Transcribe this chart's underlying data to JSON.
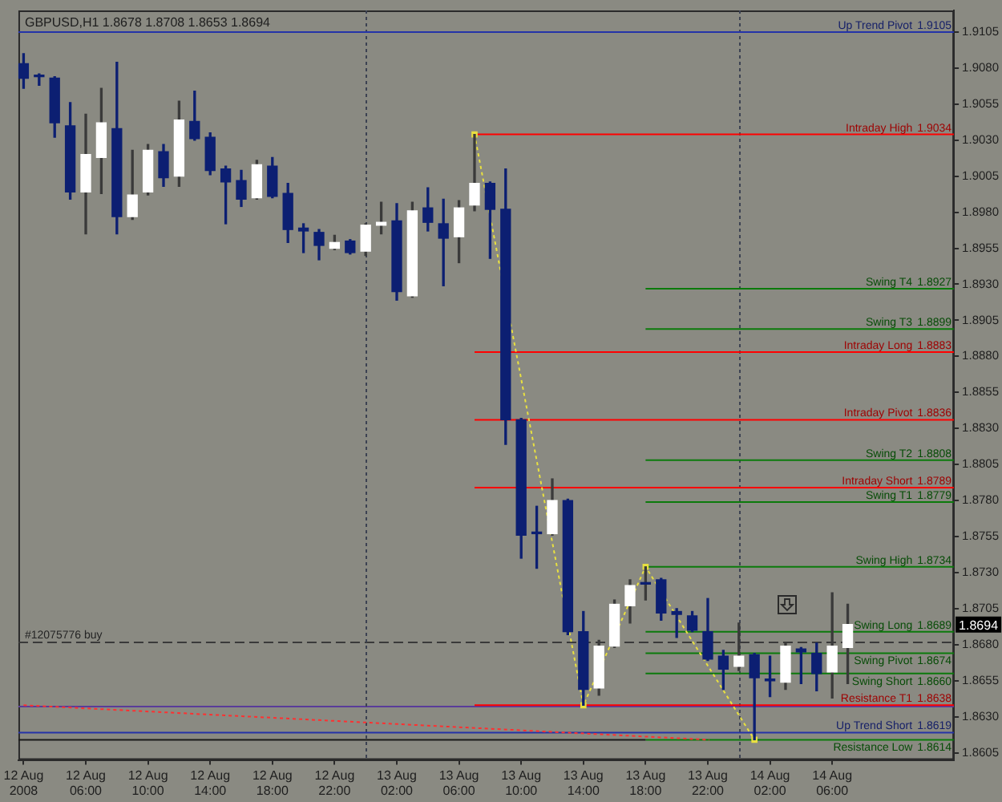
{
  "chart_data": {
    "type": "candlestick",
    "title": "GBPUSD,H1 1.8678 1.8708 1.8653 1.8694",
    "x": [
      "2008-08-12T02:00",
      "2008-08-12T03:00",
      "2008-08-12T04:00",
      "2008-08-12T05:00",
      "2008-08-12T06:00",
      "2008-08-12T07:00",
      "2008-08-12T08:00",
      "2008-08-12T09:00",
      "2008-08-12T10:00",
      "2008-08-12T11:00",
      "2008-08-12T12:00",
      "2008-08-12T13:00",
      "2008-08-12T14:00",
      "2008-08-12T15:00",
      "2008-08-12T16:00",
      "2008-08-12T17:00",
      "2008-08-12T18:00",
      "2008-08-12T19:00",
      "2008-08-12T20:00",
      "2008-08-12T21:00",
      "2008-08-12T22:00",
      "2008-08-12T23:00",
      "2008-08-13T00:00",
      "2008-08-13T01:00",
      "2008-08-13T02:00",
      "2008-08-13T03:00",
      "2008-08-13T04:00",
      "2008-08-13T05:00",
      "2008-08-13T06:00",
      "2008-08-13T07:00",
      "2008-08-13T08:00",
      "2008-08-13T09:00",
      "2008-08-13T10:00",
      "2008-08-13T11:00",
      "2008-08-13T12:00",
      "2008-08-13T13:00",
      "2008-08-13T14:00",
      "2008-08-13T15:00",
      "2008-08-13T16:00",
      "2008-08-13T17:00",
      "2008-08-13T18:00",
      "2008-08-13T19:00",
      "2008-08-13T20:00",
      "2008-08-13T21:00",
      "2008-08-13T22:00",
      "2008-08-13T23:00",
      "2008-08-14T00:00",
      "2008-08-14T01:00",
      "2008-08-14T02:00",
      "2008-08-14T03:00",
      "2008-08-14T04:00",
      "2008-08-14T05:00",
      "2008-08-14T06:00",
      "2008-08-14T07:00"
    ],
    "ohlc": [
      [
        1.9083,
        1.909,
        1.9066,
        1.9073
      ],
      [
        1.9075,
        1.9076,
        1.9068,
        1.9074
      ],
      [
        1.9073,
        1.9074,
        1.9032,
        1.9042
      ],
      [
        1.904,
        1.9056,
        1.8989,
        1.8994
      ],
      [
        1.8994,
        1.9048,
        1.8965,
        1.902
      ],
      [
        1.9018,
        1.9066,
        1.8993,
        1.9042
      ],
      [
        1.9038,
        1.9084,
        1.8965,
        1.8977
      ],
      [
        1.8977,
        1.9023,
        1.8975,
        1.8992
      ],
      [
        1.8994,
        1.9027,
        1.8992,
        1.9023
      ],
      [
        1.9022,
        1.9027,
        1.8998,
        1.9004
      ],
      [
        1.9005,
        1.9057,
        1.8998,
        1.9044
      ],
      [
        1.9043,
        1.9064,
        1.903,
        1.9031
      ],
      [
        1.9032,
        1.9035,
        1.9006,
        1.9009
      ],
      [
        1.901,
        1.9012,
        1.8972,
        1.9001
      ],
      [
        1.9002,
        1.9009,
        1.8984,
        1.8989
      ],
      [
        1.899,
        1.9016,
        1.8989,
        1.9013
      ],
      [
        1.9012,
        1.9018,
        1.899,
        1.8991
      ],
      [
        1.8993,
        1.9,
        1.8959,
        1.8968
      ],
      [
        1.8969,
        1.8972,
        1.8952,
        1.8967
      ],
      [
        1.8966,
        1.8968,
        1.8947,
        1.8957
      ],
      [
        1.8955,
        1.8964,
        1.8954,
        1.8959
      ],
      [
        1.896,
        1.8961,
        1.8951,
        1.8952
      ],
      [
        1.8953,
        1.8972,
        1.895,
        1.8971
      ],
      [
        1.8971,
        1.8987,
        1.8965,
        1.8973
      ],
      [
        1.8974,
        1.8986,
        1.8919,
        1.8925
      ],
      [
        1.8922,
        1.8987,
        1.8921,
        1.8981
      ],
      [
        1.8983,
        1.8997,
        1.8967,
        1.8973
      ],
      [
        1.8972,
        1.8989,
        1.8929,
        1.8962
      ],
      [
        1.8963,
        1.8988,
        1.8945,
        1.8983
      ],
      [
        1.8985,
        1.9034,
        1.8981,
        1.9
      ],
      [
        1.9,
        1.9001,
        1.8948,
        1.8982
      ],
      [
        1.8982,
        1.901,
        1.8819,
        1.8836
      ],
      [
        1.8836,
        1.8837,
        1.874,
        1.8756
      ],
      [
        1.8758,
        1.8776,
        1.8733,
        1.8757
      ],
      [
        1.8757,
        1.8795,
        1.8756,
        1.878
      ],
      [
        1.878,
        1.8781,
        1.8687,
        1.8689
      ],
      [
        1.8689,
        1.8703,
        1.8638,
        1.8649
      ],
      [
        1.865,
        1.8683,
        1.8645,
        1.8679
      ],
      [
        1.8679,
        1.8711,
        1.8678,
        1.8708
      ],
      [
        1.8707,
        1.8725,
        1.8695,
        1.8721
      ],
      [
        1.8722,
        1.8734,
        1.8711,
        1.8722
      ],
      [
        1.8725,
        1.8726,
        1.8697,
        1.8702
      ],
      [
        1.8703,
        1.8705,
        1.8685,
        1.8701
      ],
      [
        1.87,
        1.8703,
        1.8689,
        1.869
      ],
      [
        1.8689,
        1.8712,
        1.8669,
        1.867
      ],
      [
        1.8672,
        1.8676,
        1.8649,
        1.8663
      ],
      [
        1.8665,
        1.8695,
        1.8662,
        1.8672
      ],
      [
        1.8673,
        1.8674,
        1.8614,
        1.8657
      ],
      [
        1.8656,
        1.8672,
        1.8644,
        1.8655
      ],
      [
        1.8654,
        1.8681,
        1.8649,
        1.8679
      ],
      [
        1.8677,
        1.8678,
        1.8653,
        1.8675
      ],
      [
        1.8674,
        1.8681,
        1.8648,
        1.866
      ],
      [
        1.8661,
        1.8716,
        1.8643,
        1.8679
      ],
      [
        1.8678,
        1.8708,
        1.8653,
        1.8694
      ]
    ],
    "colors": [
      "#0c1f72",
      "#0c1f72",
      "#0c1f72",
      "#0c1f72",
      "#ffffff",
      "#ffffff",
      "#0c1f72",
      "#ffffff",
      "#ffffff",
      "#0c1f72",
      "#ffffff",
      "#0c1f72",
      "#0c1f72",
      "#0c1f72",
      "#0c1f72",
      "#ffffff",
      "#0c1f72",
      "#0c1f72",
      "#0c1f72",
      "#0c1f72",
      "#ffffff",
      "#0c1f72",
      "#ffffff",
      "#ffffff",
      "#0c1f72",
      "#ffffff",
      "#0c1f72",
      "#0c1f72",
      "#ffffff",
      "#ffffff",
      "#0c1f72",
      "#0c1f72",
      "#0c1f72",
      "#0c1f72",
      "#ffffff",
      "#0c1f72",
      "#0c1f72",
      "#ffffff",
      "#ffffff",
      "#ffffff",
      "#0c1f72",
      "#0c1f72",
      "#0c1f72",
      "#0c1f72",
      "#0c1f72",
      "#0c1f72",
      "#ffffff",
      "#0c1f72",
      "#0c1f72",
      "#ffffff",
      "#0c1f72",
      "#0c1f72",
      "#ffffff",
      "#ffffff"
    ],
    "series": [
      {
        "type": "line",
        "color": "#e8e040",
        "line_style": "dotted",
        "marker": "square",
        "x": [
          "2008-08-13T07:00",
          "2008-08-13T14:00",
          "2008-08-13T18:00",
          "2008-08-14T01:00"
        ],
        "values": [
          1.9034,
          1.8638,
          1.8734,
          1.8614
        ]
      },
      {
        "type": "line",
        "color": "#ff3030",
        "line_style": "dotted",
        "x": [
          "2008-08-12T02:00",
          "2008-08-13T22:06"
        ],
        "values": [
          1.8638,
          1.8614
        ]
      },
      {
        "type": "line",
        "name": "Up Trend Pivot",
        "color": "#2433a8",
        "x": [
          "2008-08-12T01:40",
          "2008-08-14T13:50"
        ],
        "values": [
          1.9105,
          1.9105
        ],
        "value_labels": [
          null,
          "1.9105"
        ]
      },
      {
        "type": "line",
        "name": "Intraday High",
        "color": "#ff0000",
        "x": [
          "2008-08-13T07:00",
          "2008-08-14T13:50"
        ],
        "values": [
          1.9034,
          1.9034
        ],
        "value_labels": [
          null,
          "1.9034"
        ]
      },
      {
        "type": "line",
        "name": "Swing T4",
        "color": "#0b7a0b",
        "x": [
          "2008-08-13T18:00",
          "2008-08-14T13:50"
        ],
        "values": [
          1.8927,
          1.8927
        ],
        "value_labels": [
          null,
          "1.8927"
        ]
      },
      {
        "type": "line",
        "name": "Swing T3",
        "color": "#0b7a0b",
        "x": [
          "2008-08-13T18:00",
          "2008-08-14T13:50"
        ],
        "values": [
          1.8899,
          1.8899
        ],
        "value_labels": [
          null,
          "1.8899"
        ]
      },
      {
        "type": "line",
        "name": "Intraday Long",
        "color": "#ff0000",
        "x": [
          "2008-08-13T07:00",
          "2008-08-14T13:50"
        ],
        "values": [
          1.8883,
          1.8883
        ],
        "value_labels": [
          null,
          "1.8883"
        ]
      },
      {
        "type": "line",
        "name": "Intraday Pivot",
        "color": "#ff0000",
        "x": [
          "2008-08-13T07:00",
          "2008-08-14T13:50"
        ],
        "values": [
          1.8836,
          1.8836
        ],
        "value_labels": [
          null,
          "1.8836"
        ]
      },
      {
        "type": "line",
        "name": "Swing T2",
        "color": "#0b7a0b",
        "x": [
          "2008-08-13T18:00",
          "2008-08-14T13:50"
        ],
        "values": [
          1.8808,
          1.8808
        ],
        "value_labels": [
          null,
          "1.8808"
        ]
      },
      {
        "type": "line",
        "name": "Intraday Short",
        "color": "#ff0000",
        "x": [
          "2008-08-13T07:00",
          "2008-08-14T13:50"
        ],
        "values": [
          1.8789,
          1.8789
        ],
        "value_labels": [
          null,
          "1.8789"
        ]
      },
      {
        "type": "line",
        "name": "Swing T1",
        "color": "#0b7a0b",
        "x": [
          "2008-08-13T18:00",
          "2008-08-14T13:50"
        ],
        "values": [
          1.8779,
          1.8779
        ],
        "value_labels": [
          null,
          "1.8779"
        ]
      },
      {
        "type": "line",
        "name": "Swing High",
        "color": "#0b7a0b",
        "x": [
          "2008-08-13T18:00",
          "2008-08-14T13:50"
        ],
        "values": [
          1.8734,
          1.8734
        ],
        "value_labels": [
          null,
          "1.8734"
        ]
      },
      {
        "type": "line",
        "name": "Swing Long",
        "color": "#0b7a0b",
        "x": [
          "2008-08-13T18:00",
          "2008-08-14T13:50"
        ],
        "values": [
          1.8689,
          1.8689
        ],
        "value_labels": [
          null,
          "1.8689"
        ]
      },
      {
        "type": "line",
        "name": "Swing Pivot",
        "color": "#0b7a0b",
        "x": [
          "2008-08-13T18:00",
          "2008-08-14T13:50"
        ],
        "values": [
          1.8674,
          1.8674
        ],
        "value_labels": [
          null,
          "1.8674"
        ]
      },
      {
        "type": "line",
        "name": "Swing Short",
        "color": "#0b7a0b",
        "x": [
          "2008-08-13T18:00",
          "2008-08-14T13:50"
        ],
        "values": [
          1.866,
          1.866
        ],
        "value_labels": [
          null,
          "1.8660"
        ]
      },
      {
        "type": "line",
        "name": "Resistance T1",
        "color": "#ff0000",
        "x": [
          "2008-08-13T07:00",
          "2008-08-14T13:50"
        ],
        "values": [
          1.8638,
          1.8638
        ],
        "value_labels": [
          null,
          "1.8638"
        ]
      },
      {
        "type": "line",
        "name": "Up Trend Short",
        "color": "#2433a8",
        "x": [
          "2008-08-12T01:40",
          "2008-08-14T13:50"
        ],
        "values": [
          1.8619,
          1.8619
        ],
        "value_labels": [
          null,
          "1.8619"
        ]
      },
      {
        "type": "line",
        "color": "#1a1a1a",
        "x": [
          "2008-08-12T01:40",
          "2008-08-13T18:00"
        ],
        "values": [
          1.8614,
          1.8614
        ]
      },
      {
        "type": "line",
        "name": "Resistance Low",
        "color": "#0b7a0b",
        "x": [
          "2008-08-13T18:00",
          "2008-08-14T13:50"
        ],
        "values": [
          1.8614,
          1.8614
        ],
        "value_labels": [
          null,
          "1.8614"
        ]
      }
    ],
    "ref_lines": [
      {
        "axis": "y",
        "value": 1.8682,
        "label": "#12075776 buy",
        "color": "#3a3a3a",
        "line_style": "dashed"
      },
      {
        "axis": "y",
        "value": 1.8638,
        "color": "#5a3c9a"
      },
      {
        "axis": "x",
        "value": "2008-08-13T00:00",
        "color": "#3c4252",
        "line_style": "dotted"
      },
      {
        "axis": "x",
        "value": "2008-08-14T00:00",
        "color": "#3c4252",
        "line_style": "dotted"
      }
    ],
    "annotations": [
      {
        "text": "1.8694",
        "y": 1.8694
      }
    ],
    "xlim": [
      "2008-08-12T01:40",
      "2008-08-14T13:50"
    ],
    "xticks": [
      {
        "value": "2008-08-12T02:00",
        "label": "12 Aug 2008"
      },
      {
        "value": "2008-08-12T06:00",
        "label": "12 Aug 06:00"
      },
      {
        "value": "2008-08-12T10:00",
        "label": "12 Aug 10:00"
      },
      {
        "value": "2008-08-12T14:00",
        "label": "12 Aug 14:00"
      },
      {
        "value": "2008-08-12T18:00",
        "label": "12 Aug 18:00"
      },
      {
        "value": "2008-08-12T22:00",
        "label": "12 Aug 22:00"
      },
      {
        "value": "2008-08-13T02:00",
        "label": "13 Aug 02:00"
      },
      {
        "value": "2008-08-13T06:00",
        "label": "13 Aug 06:00"
      },
      {
        "value": "2008-08-13T10:00",
        "label": "13 Aug 10:00"
      },
      {
        "value": "2008-08-13T14:00",
        "label": "13 Aug 14:00"
      },
      {
        "value": "2008-08-13T18:00",
        "label": "13 Aug 18:00"
      },
      {
        "value": "2008-08-13T22:00",
        "label": "13 Aug 22:00"
      },
      {
        "value": "2008-08-14T02:00",
        "label": "14 Aug 02:00"
      },
      {
        "value": "2008-08-14T06:00",
        "label": "14 Aug 06:00"
      }
    ],
    "ylim": [
      1.86,
      1.912
    ],
    "yticks": [
      1.8605,
      {
        "value": 1.863,
        "label": "1.8630"
      },
      1.8655,
      {
        "value": 1.868,
        "label": "1.8680"
      },
      1.8705,
      {
        "value": 1.873,
        "label": "1.8730"
      },
      1.8755,
      {
        "value": 1.878,
        "label": "1.8780"
      },
      1.8805,
      {
        "value": 1.883,
        "label": "1.8830"
      },
      1.8855,
      {
        "value": 1.888,
        "label": "1.8880"
      },
      1.8905,
      {
        "value": 1.893,
        "label": "1.8930"
      },
      1.8955,
      {
        "value": 1.898,
        "label": "1.8980"
      },
      1.9005,
      {
        "value": 1.903,
        "label": "1.9030"
      },
      1.9055,
      {
        "value": 1.908,
        "label": "1.9080"
      },
      1.9105
    ]
  }
}
